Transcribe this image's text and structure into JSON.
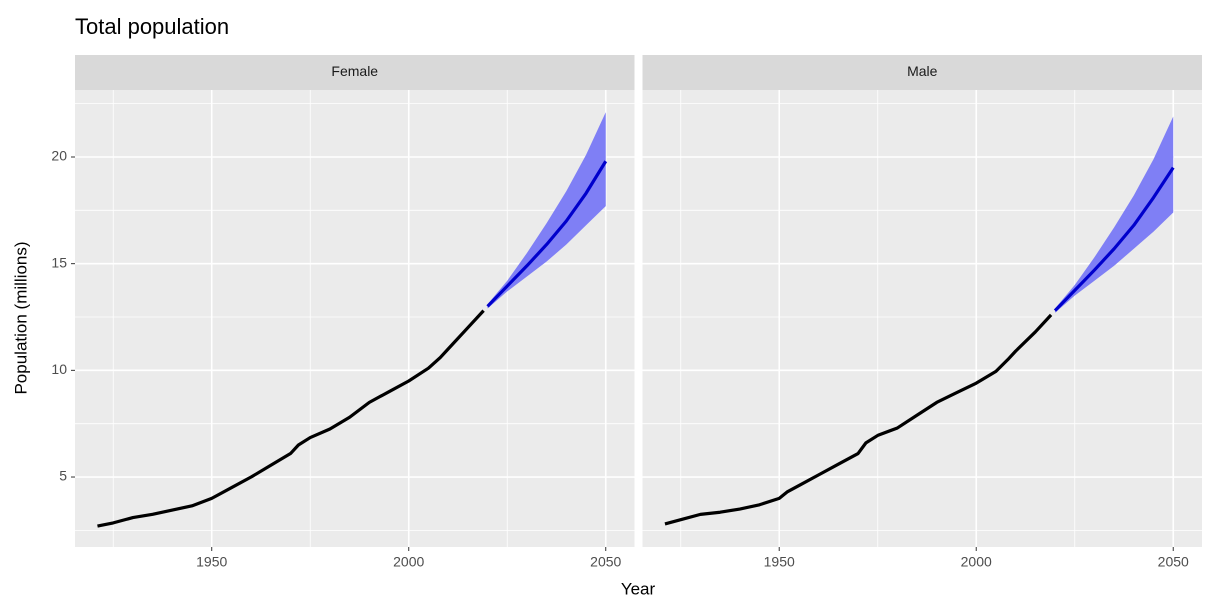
{
  "chart_data": {
    "type": "line",
    "title": "Total population",
    "xlabel": "Year",
    "ylabel": "Population (millions)",
    "xlim": [
      1915.3,
      2057.3
    ],
    "ylim": [
      1.72,
      23.14
    ],
    "xticks": [
      1950,
      2000,
      2050
    ],
    "yticks": [
      5,
      10,
      15,
      20
    ],
    "xminor": [
      1925,
      1975,
      2025
    ],
    "yminor": [
      2.5,
      7.5,
      12.5,
      17.5,
      22.5
    ],
    "grid": true,
    "panels": [
      {
        "name": "Female",
        "series": [
          {
            "color": "#000000",
            "x": [
              1921,
              1925,
              1930,
              1935,
              1940,
              1945,
              1950,
              1955,
              1960,
              1965,
              1970,
              1972,
              1975,
              1980,
              1985,
              1990,
              1995,
              2000,
              2005,
              2008,
              2010,
              2015,
              2019
            ],
            "values": [
              2.7,
              2.85,
              3.1,
              3.25,
              3.45,
              3.65,
              4.0,
              4.5,
              5.0,
              5.55,
              6.1,
              6.5,
              6.85,
              7.25,
              7.8,
              8.5,
              9.0,
              9.5,
              10.1,
              10.6,
              11.0,
              12.0,
              12.8
            ]
          },
          {
            "color": "#0000cc",
            "band_color": "#7f7ff5",
            "x": [
              2020,
              2025,
              2030,
              2035,
              2040,
              2045,
              2050
            ],
            "values": [
              13.0,
              13.95,
              14.9,
              15.9,
              17.0,
              18.3,
              19.8
            ],
            "lower": [
              12.9,
              13.7,
              14.4,
              15.1,
              15.9,
              16.8,
              17.7
            ],
            "upper": [
              13.1,
              14.2,
              15.5,
              16.9,
              18.4,
              20.1,
              22.1
            ]
          }
        ]
      },
      {
        "name": "Male",
        "series": [
          {
            "color": "#000000",
            "x": [
              1921,
              1925,
              1930,
              1935,
              1940,
              1945,
              1950,
              1952,
              1955,
              1960,
              1965,
              1970,
              1972,
              1975,
              1980,
              1985,
              1990,
              1995,
              2000,
              2005,
              2008,
              2010,
              2015,
              2019
            ],
            "values": [
              2.8,
              3.0,
              3.25,
              3.35,
              3.5,
              3.7,
              4.0,
              4.3,
              4.6,
              5.1,
              5.6,
              6.1,
              6.6,
              6.95,
              7.3,
              7.9,
              8.5,
              8.95,
              9.4,
              9.95,
              10.5,
              10.9,
              11.8,
              12.6
            ]
          },
          {
            "color": "#0000cc",
            "band_color": "#7f7ff5",
            "x": [
              2020,
              2025,
              2030,
              2035,
              2040,
              2045,
              2050
            ],
            "values": [
              12.8,
              13.75,
              14.7,
              15.7,
              16.8,
              18.1,
              19.5
            ],
            "lower": [
              12.7,
              13.5,
              14.2,
              14.9,
              15.7,
              16.5,
              17.4
            ],
            "upper": [
              12.9,
              14.0,
              15.3,
              16.7,
              18.2,
              19.9,
              21.9
            ]
          }
        ]
      }
    ]
  }
}
